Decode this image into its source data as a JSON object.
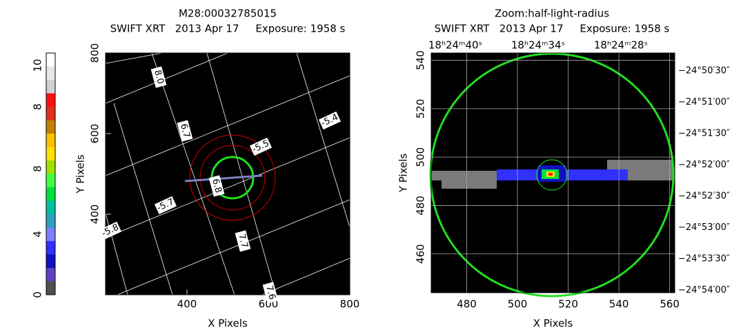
{
  "colorbar": {
    "labels": [
      "0",
      "4",
      "8",
      "8",
      "10"
    ],
    "colors": [
      "#505050",
      "#6040c0",
      "#1010c0",
      "#3030ff",
      "#8080ff",
      "#30a0c0",
      "#00c0a0",
      "#00e040",
      "#40ff40",
      "#a0e000",
      "#ffe000",
      "#ffc000",
      "#c08000",
      "#e03020",
      "#ff1010",
      "#d0d0d0",
      "#e8e8e8",
      "#ffffff"
    ]
  },
  "chart_data": [
    {
      "type": "image",
      "title": "M28:00032785015",
      "subtitle": "SWIFT XRT   2013 Apr 17     Exposure: 1958 s",
      "xlabel": "X Pixels",
      "ylabel": "Y Pixels",
      "xlim": [
        200,
        800
      ],
      "ylim": [
        200,
        800
      ],
      "xticks": [
        400,
        600,
        800
      ],
      "yticks": [
        400,
        600,
        800
      ],
      "grid_labels": [
        "8.0",
        "6.7",
        "-5.4",
        "-5.5",
        "-5.7",
        "-5.8",
        "6.8",
        "7.7",
        "7.6"
      ]
    },
    {
      "type": "image",
      "title": "Zoom:half-light-radius",
      "subtitle": "SWIFT XRT   2013 Apr 17     Exposure: 1958 s",
      "xlabel": "X Pixels",
      "ylabel": "Y Pixels",
      "xlim": [
        466,
        562
      ],
      "ylim": [
        444,
        543
      ],
      "xticks": [
        480,
        500,
        520,
        540,
        560
      ],
      "yticks": [
        460,
        480,
        500,
        520,
        540
      ],
      "ra_ticks": [
        "18ʰ24ᵐ40ˢ",
        "18ʰ24ᵐ34ˢ",
        "18ʰ24ᵐ28ˢ"
      ],
      "dec_ticks": [
        "−24°50′30″",
        "−24°51′00″",
        "−24°51′30″",
        "−24°52′00″",
        "−24°52′30″",
        "−24°53′00″",
        "−24°53′30″",
        "−24°54′00″"
      ]
    }
  ]
}
